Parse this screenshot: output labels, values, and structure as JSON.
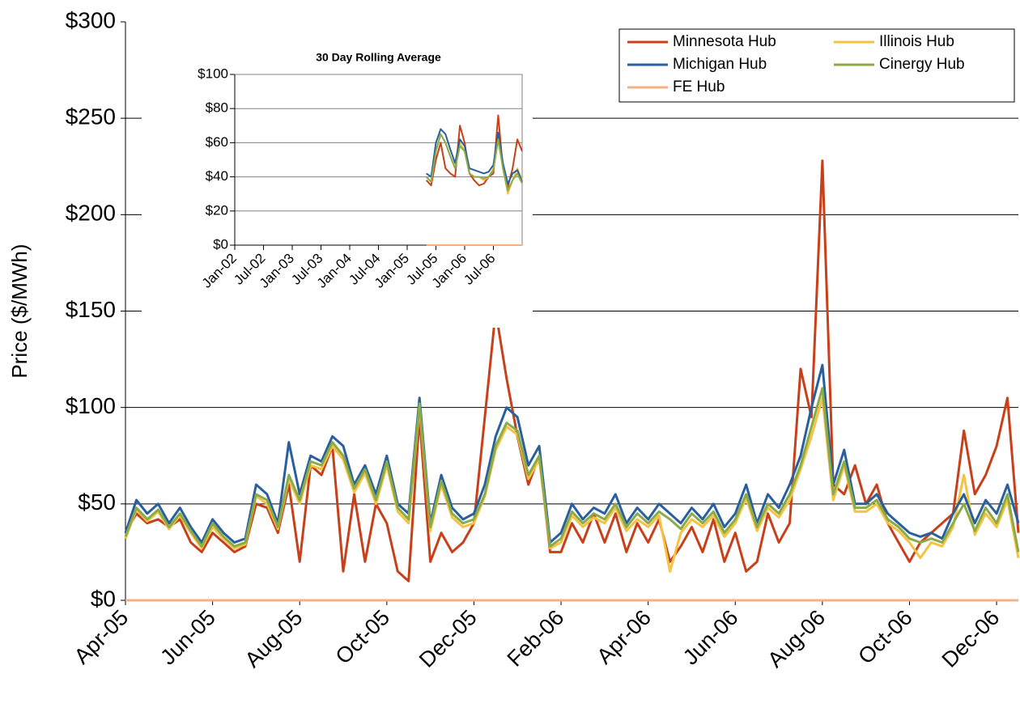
{
  "chart_data": [
    {
      "type": "line",
      "ylabel": "Price ($/MWh)",
      "categories": [
        "Apr-05",
        null,
        null,
        null,
        null,
        null,
        null,
        null,
        "Jun-05",
        null,
        null,
        null,
        null,
        null,
        null,
        null,
        "Aug-05",
        null,
        null,
        null,
        null,
        null,
        null,
        null,
        "Oct-05",
        null,
        null,
        null,
        null,
        null,
        null,
        null,
        "Dec-05",
        null,
        null,
        null,
        null,
        null,
        null,
        null,
        "Feb-06",
        null,
        null,
        null,
        null,
        null,
        null,
        null,
        "Apr-06",
        null,
        null,
        null,
        null,
        null,
        null,
        null,
        "Jun-06",
        null,
        null,
        null,
        null,
        null,
        null,
        null,
        "Aug-06",
        null,
        null,
        null,
        null,
        null,
        null,
        null,
        "Oct-06",
        null,
        null,
        null,
        null,
        null,
        null,
        null,
        "Dec-06",
        null,
        null
      ],
      "ylim": [
        0,
        300
      ],
      "yticks": [
        {
          "value": 0,
          "label": "$0"
        },
        {
          "value": 50,
          "label": "$50"
        },
        {
          "value": 100,
          "label": "$100"
        },
        {
          "value": 150,
          "label": "$150"
        },
        {
          "value": 200,
          "label": "$200"
        },
        {
          "value": 250,
          "label": "$250"
        },
        {
          "value": 300,
          "label": "$300"
        }
      ],
      "grid": true,
      "legend": "top-right",
      "series": [
        {
          "name": "Minnesota Hub",
          "color": "#c8401a",
          "values": [
            35,
            45,
            40,
            42,
            38,
            42,
            30,
            25,
            35,
            30,
            25,
            28,
            50,
            48,
            35,
            60,
            20,
            70,
            65,
            80,
            15,
            55,
            20,
            50,
            40,
            15,
            10,
            95,
            20,
            35,
            25,
            30,
            40,
            95,
            150,
            115,
            85,
            60,
            75,
            25,
            25,
            40,
            30,
            45,
            30,
            45,
            25,
            40,
            30,
            42,
            20,
            28,
            38,
            25,
            42,
            20,
            35,
            15,
            20,
            45,
            30,
            40,
            120,
            95,
            228,
            60,
            55,
            70,
            50,
            60,
            40,
            30,
            20,
            30,
            35,
            40,
            45,
            88,
            55,
            65,
            80,
            105,
            35
          ]
        },
        {
          "name": "Illinois Hub",
          "color": "#f5c242",
          "values": [
            32,
            47,
            41,
            46,
            37,
            44,
            35,
            27,
            38,
            32,
            27,
            29,
            54,
            50,
            37,
            63,
            50,
            70,
            68,
            80,
            73,
            56,
            66,
            50,
            70,
            46,
            40,
            100,
            36,
            60,
            43,
            38,
            40,
            54,
            78,
            90,
            86,
            63,
            73,
            27,
            30,
            44,
            38,
            43,
            40,
            48,
            36,
            42,
            38,
            44,
            15,
            35,
            42,
            38,
            44,
            33,
            40,
            53,
            36,
            48,
            43,
            52,
            68,
            85,
            105,
            52,
            70,
            46,
            46,
            50,
            40,
            36,
            30,
            22,
            30,
            28,
            38,
            65,
            34,
            45,
            38,
            52,
            22
          ]
        },
        {
          "name": "Michigan Hub",
          "color": "#2a5f9e",
          "values": [
            35,
            52,
            45,
            50,
            40,
            48,
            38,
            30,
            42,
            35,
            30,
            32,
            60,
            55,
            40,
            82,
            55,
            75,
            72,
            85,
            80,
            60,
            70,
            55,
            75,
            50,
            45,
            105,
            40,
            65,
            48,
            42,
            45,
            60,
            85,
            100,
            95,
            70,
            80,
            30,
            35,
            50,
            42,
            48,
            45,
            55,
            40,
            48,
            42,
            50,
            45,
            40,
            48,
            42,
            50,
            38,
            45,
            60,
            40,
            55,
            48,
            60,
            75,
            100,
            122,
            60,
            78,
            50,
            50,
            55,
            45,
            40,
            35,
            33,
            35,
            32,
            45,
            55,
            40,
            52,
            45,
            60,
            40
          ]
        },
        {
          "name": "Cinergy Hub",
          "color": "#8aab4a",
          "values": [
            33,
            48,
            42,
            47,
            38,
            45,
            36,
            28,
            40,
            33,
            28,
            30,
            55,
            52,
            38,
            65,
            52,
            72,
            70,
            82,
            75,
            58,
            68,
            52,
            72,
            48,
            42,
            102,
            38,
            62,
            45,
            40,
            42,
            55,
            80,
            92,
            88,
            65,
            75,
            28,
            32,
            46,
            40,
            45,
            42,
            50,
            38,
            45,
            40,
            46,
            42,
            37,
            45,
            40,
            46,
            35,
            42,
            55,
            38,
            50,
            45,
            55,
            70,
            90,
            110,
            55,
            72,
            48,
            48,
            52,
            42,
            38,
            32,
            30,
            32,
            30,
            40,
            50,
            36,
            48,
            40,
            55,
            25
          ]
        },
        {
          "name": "FE Hub",
          "color": "#f4b183",
          "values": [
            0,
            0,
            0,
            0,
            0,
            0,
            0,
            0,
            0,
            0,
            0,
            0,
            0,
            0,
            0,
            0,
            0,
            0,
            0,
            0,
            0,
            0,
            0,
            0,
            0,
            0,
            0,
            0,
            0,
            0,
            0,
            0,
            0,
            0,
            0,
            0,
            0,
            0,
            0,
            0,
            0,
            0,
            0,
            0,
            0,
            0,
            0,
            0,
            0,
            0,
            0,
            0,
            0,
            0,
            0,
            0,
            0,
            0,
            0,
            0,
            0,
            0,
            0,
            0,
            0,
            0,
            0,
            0,
            0,
            0,
            0,
            0,
            0,
            0,
            0,
            0,
            0,
            0,
            0,
            0,
            0,
            0,
            0
          ]
        }
      ]
    },
    {
      "type": "line",
      "title": "30 Day Rolling Average",
      "categories": [
        "Jan-02",
        null,
        null,
        null,
        null,
        null,
        "Jul-02",
        null,
        null,
        null,
        null,
        null,
        "Jan-03",
        null,
        null,
        null,
        null,
        null,
        "Jul-03",
        null,
        null,
        null,
        null,
        null,
        "Jan-04",
        null,
        null,
        null,
        null,
        null,
        "Jul-04",
        null,
        null,
        null,
        null,
        null,
        "Jan-05",
        null,
        null,
        null,
        null,
        null,
        "Jul-05",
        null,
        null,
        null,
        null,
        null,
        "Jan-06",
        null,
        null,
        null,
        null,
        null,
        "Jul-06",
        null,
        null,
        null,
        null,
        null,
        null
      ],
      "ylim": [
        0,
        100
      ],
      "yticks": [
        {
          "value": 0,
          "label": "$0"
        },
        {
          "value": 20,
          "label": "$20"
        },
        {
          "value": 40,
          "label": "$40"
        },
        {
          "value": 60,
          "label": "$60"
        },
        {
          "value": 80,
          "label": "$80"
        },
        {
          "value": 100,
          "label": "$100"
        }
      ],
      "grid": true,
      "series": [
        {
          "color": "#c8401a",
          "values": [
            null,
            null,
            null,
            null,
            null,
            null,
            null,
            null,
            null,
            null,
            null,
            null,
            null,
            null,
            null,
            null,
            null,
            null,
            null,
            null,
            null,
            null,
            null,
            null,
            null,
            null,
            null,
            null,
            null,
            null,
            null,
            null,
            null,
            null,
            null,
            null,
            null,
            null,
            null,
            null,
            38,
            35,
            50,
            60,
            45,
            42,
            40,
            70,
            60,
            42,
            38,
            35,
            36,
            40,
            42,
            76,
            45,
            34,
            45,
            62,
            55
          ]
        },
        {
          "color": "#f5c242",
          "values": [
            null,
            null,
            null,
            null,
            null,
            null,
            null,
            null,
            null,
            null,
            null,
            null,
            null,
            null,
            null,
            null,
            null,
            null,
            null,
            null,
            null,
            null,
            null,
            null,
            null,
            null,
            null,
            null,
            null,
            null,
            null,
            null,
            null,
            null,
            null,
            null,
            null,
            null,
            null,
            null,
            40,
            37,
            55,
            65,
            60,
            52,
            45,
            60,
            55,
            42,
            40,
            40,
            38,
            40,
            45,
            62,
            45,
            30,
            38,
            45,
            38
          ]
        },
        {
          "color": "#2a5f9e",
          "values": [
            null,
            null,
            null,
            null,
            null,
            null,
            null,
            null,
            null,
            null,
            null,
            null,
            null,
            null,
            null,
            null,
            null,
            null,
            null,
            null,
            null,
            null,
            null,
            null,
            null,
            null,
            null,
            null,
            null,
            null,
            null,
            null,
            null,
            null,
            null,
            null,
            null,
            null,
            null,
            null,
            42,
            40,
            60,
            68,
            65,
            56,
            48,
            62,
            58,
            45,
            44,
            43,
            42,
            43,
            47,
            66,
            48,
            36,
            42,
            44,
            37
          ]
        },
        {
          "color": "#8aab4a",
          "values": [
            null,
            null,
            null,
            null,
            null,
            null,
            null,
            null,
            null,
            null,
            null,
            null,
            null,
            null,
            null,
            null,
            null,
            null,
            null,
            null,
            null,
            null,
            null,
            null,
            null,
            null,
            null,
            null,
            null,
            null,
            null,
            null,
            null,
            null,
            null,
            null,
            null,
            null,
            null,
            null,
            40,
            37,
            55,
            65,
            60,
            52,
            45,
            58,
            55,
            42,
            40,
            40,
            39,
            40,
            44,
            62,
            45,
            32,
            38,
            42,
            36
          ]
        },
        {
          "color": "#f4b183",
          "values": [
            null,
            null,
            null,
            null,
            null,
            null,
            null,
            null,
            null,
            null,
            null,
            null,
            null,
            null,
            null,
            null,
            null,
            null,
            null,
            null,
            null,
            null,
            null,
            null,
            null,
            null,
            null,
            null,
            null,
            null,
            null,
            null,
            null,
            null,
            null,
            null,
            null,
            null,
            null,
            null,
            0,
            0,
            0,
            0,
            0,
            0,
            0,
            0,
            0,
            0,
            0,
            0,
            0,
            0,
            0,
            0,
            0,
            0,
            0,
            0,
            0
          ]
        }
      ]
    }
  ]
}
